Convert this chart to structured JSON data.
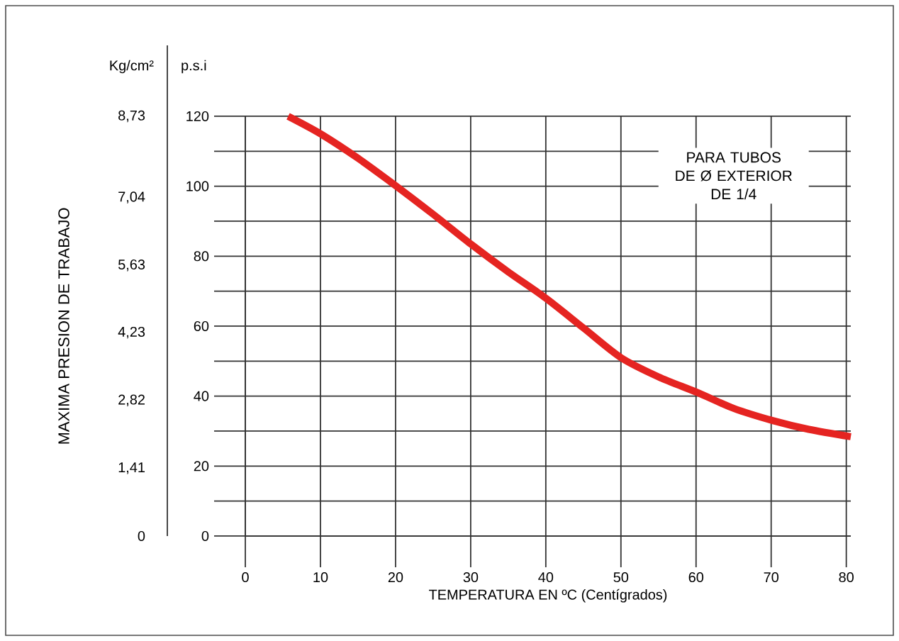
{
  "chart_data": {
    "type": "line",
    "xlabel": "TEMPERATURA EN ºC (Centígrados)",
    "ylabel": "p.s.i",
    "y2label": "Kg/cm²",
    "annotations": [
      "MAXIMA PRESION DE TRABAJO",
      "PARA TUBOS\nDE Ø EXTERIOR\nDE 1/4"
    ],
    "series": [
      {
        "color": "#e52421",
        "x": [
          5.7,
          10,
          15,
          19.8,
          25,
          30,
          35,
          40,
          45,
          50,
          55,
          60.2,
          65,
          70.2,
          75,
          80.6
        ],
        "values": [
          120,
          115,
          108,
          100.5,
          92,
          83.5,
          75.5,
          68,
          59.5,
          51,
          45.5,
          41,
          36.5,
          33,
          30.5,
          28.4
        ]
      }
    ],
    "xlim": [
      0,
      80.6
    ],
    "xticks": [
      0,
      10,
      20,
      30,
      40,
      50,
      60,
      70,
      80
    ],
    "ylim": [
      0,
      120
    ],
    "yticks": [
      0,
      20,
      40,
      60,
      80,
      100,
      120
    ],
    "y2lim": [
      0,
      8.73
    ],
    "y2ticks": [
      0,
      {
        "value": 1.41,
        "label": "1,41"
      },
      {
        "value": 2.82,
        "label": "2,82"
      },
      {
        "value": 4.23,
        "label": "4,23"
      },
      {
        "value": 5.63,
        "label": "5,63"
      },
      {
        "value": 7.04,
        "label": "7,04"
      },
      {
        "value": 8.73,
        "label": "8,73"
      }
    ],
    "grid": true,
    "marker": "none",
    "line_style": "solid"
  }
}
